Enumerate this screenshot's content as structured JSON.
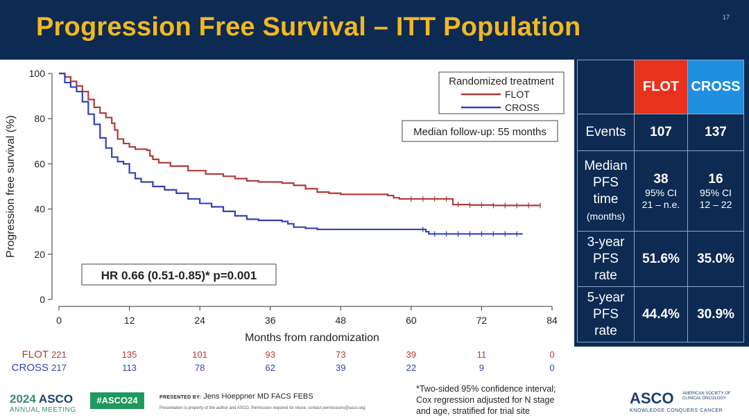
{
  "slide": {
    "title": "Progression Free Survival – ITT Population",
    "number": "17"
  },
  "chart_data": {
    "type": "line",
    "xlabel": "Months from randomization",
    "ylabel": "Progression free survival (%)",
    "xlim": [
      0,
      84
    ],
    "ylim": [
      0,
      100
    ],
    "xticks": [
      0,
      12,
      24,
      36,
      48,
      60,
      72,
      84
    ],
    "yticks": [
      0,
      20,
      40,
      60,
      80,
      100
    ],
    "legend": {
      "title": "Randomized treatment",
      "position": "top-right"
    },
    "series": [
      {
        "name": "FLOT",
        "color": "#b03a3a",
        "x": [
          0,
          1,
          2,
          3,
          4,
          5,
          6,
          7,
          8,
          9,
          9.5,
          10,
          11,
          12,
          13,
          15,
          15.5,
          16,
          17,
          19,
          22,
          25,
          28,
          30,
          32,
          34,
          36,
          38,
          40,
          42,
          44,
          46,
          48,
          50,
          52,
          54,
          56,
          57,
          58,
          60,
          62,
          64,
          66,
          67,
          67.1,
          70,
          74,
          78,
          82
        ],
        "y": [
          100,
          98.5,
          96.5,
          94.5,
          92,
          88.5,
          85,
          82.5,
          80.5,
          78,
          75,
          71,
          69,
          67.5,
          66.5,
          66,
          63.5,
          62,
          60.5,
          59,
          57,
          55.5,
          54.5,
          53.5,
          52.5,
          52,
          52,
          51.5,
          50.5,
          49,
          47.5,
          47,
          46.5,
          46.5,
          46.5,
          46.5,
          46,
          45,
          44.5,
          44.5,
          44.5,
          44.5,
          44.5,
          44.5,
          42,
          41.8,
          41.6,
          41.6,
          41.6
        ],
        "censor_x": [
          60,
          62,
          64,
          66,
          68,
          70,
          72,
          74,
          76,
          78,
          80,
          82
        ]
      },
      {
        "name": "CROSS",
        "color": "#3340b8",
        "x": [
          0,
          1,
          2,
          3,
          4,
          5,
          6,
          7,
          8,
          9,
          10,
          11,
          12,
          13,
          14,
          16,
          18,
          20,
          22,
          24,
          26,
          28,
          30,
          32,
          34,
          36,
          38,
          39,
          40,
          42,
          44,
          46,
          48,
          50,
          52,
          54,
          56,
          58,
          60,
          62,
          62.5,
          63,
          66,
          70,
          74,
          79
        ],
        "y": [
          100,
          96,
          94,
          92,
          87.5,
          82,
          77.5,
          71.5,
          67,
          63,
          61,
          60,
          56,
          53.5,
          52,
          50,
          48.5,
          47,
          44.5,
          42.5,
          41,
          39,
          37,
          35.5,
          35,
          35,
          34.5,
          33.5,
          32,
          31.5,
          31,
          31,
          31,
          31,
          31,
          31,
          31,
          31,
          31,
          31,
          30,
          29,
          29,
          29,
          29,
          29
        ],
        "censor_x": [
          62,
          64,
          66,
          68,
          70,
          72,
          74,
          76,
          78
        ]
      }
    ],
    "annotations": {
      "hr": "HR 0.66 (0.51-0.85)* p=0.001",
      "followup": "Median follow-up: 55 months"
    },
    "at_risk": {
      "times": [
        0,
        12,
        24,
        36,
        48,
        60,
        72,
        84
      ],
      "rows": [
        {
          "label": "FLOT",
          "values": [
            "221",
            "135",
            "101",
            "93",
            "73",
            "39",
            "11",
            "0"
          ]
        },
        {
          "label": "CROSS",
          "values": [
            "217",
            "113",
            "78",
            "62",
            "39",
            "22",
            "9",
            "0"
          ]
        }
      ]
    }
  },
  "summary_table": {
    "headers": [
      "FLOT",
      "CROSS"
    ],
    "rows": [
      {
        "label_lines": [
          "Events"
        ],
        "flot": "107",
        "cross": "137"
      },
      {
        "label_lines": [
          "Median",
          "PFS",
          "time"
        ],
        "label_sub": "(months)",
        "flot": "38",
        "flot_ci1": "95% CI",
        "flot_ci2": "21 – n.e.",
        "cross": "16",
        "cross_ci1": "95% CI",
        "cross_ci2": "12 – 22"
      },
      {
        "label_lines": [
          "3-year",
          "PFS",
          "rate"
        ],
        "flot": "51.6%",
        "cross": "35.0%"
      },
      {
        "label_lines": [
          "5-year",
          "PFS",
          "rate"
        ],
        "flot": "44.4%",
        "cross": "30.9%"
      }
    ]
  },
  "footer": {
    "asco_year": "2024",
    "asco_name": "ASCO",
    "asco_meeting": "ANNUAL MEETING",
    "hashtag": "#ASCO24",
    "presented_by_label": "PRESENTED BY:",
    "presenter": "Jens Hoeppner MD FACS FEBS",
    "disclaimer": "Presentation is property of the author and ASCO. Permission required for reuse; contact permissions@asco.org.",
    "footnote_lines": [
      "*Two-sided 95% confidence interval;",
      "Cox regression adjusted for N stage",
      "and age, stratified for trial site"
    ],
    "asco_logo": "ASCO",
    "asco_society": "AMERICAN SOCIETY OF CLINICAL ONCOLOGY",
    "asco_tagline": "KNOWLEDGE CONQUERS CANCER"
  }
}
